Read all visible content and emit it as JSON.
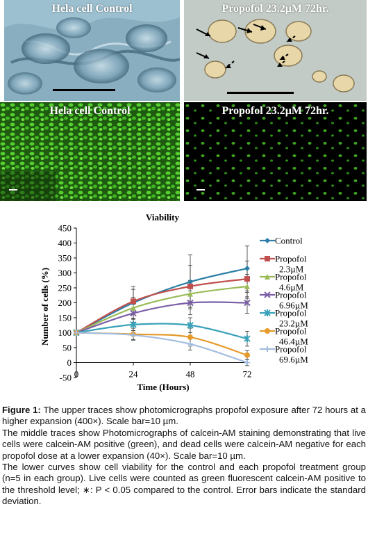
{
  "panels": [
    {
      "label": "Hela cell   Control"
    },
    {
      "label": "Propofol 23.2µM 72hr."
    },
    {
      "label": "Hela cell   Control"
    },
    {
      "label": "Propofol 23.2µM 72hr."
    }
  ],
  "colors": {
    "control": "#2e7fa8",
    "p2_3": "#c0504d",
    "p4_6": "#9bbb59",
    "p6_96": "#7a5ea6",
    "p23_2": "#3aa2b8",
    "p46_4": "#e59b2c",
    "p69_6": "#a3bde0"
  },
  "chart_data": {
    "type": "line",
    "title": "Viability",
    "xlabel": "Time (Hours)",
    "ylabel": "Number of cells (%)",
    "x": [
      0,
      24,
      48,
      72
    ],
    "xticks": [
      "0",
      "24",
      "48",
      "72"
    ],
    "ylim": [
      -50,
      450
    ],
    "yticks": [
      "450",
      "400",
      "350",
      "300",
      "250",
      "200",
      "150",
      "100",
      "50",
      "0",
      "-50"
    ],
    "grid": false,
    "legend": "right",
    "series": [
      {
        "name": "Control",
        "values": [
          100,
          200,
          270,
          315
        ],
        "err": [
          0,
          55,
          90,
          75
        ]
      },
      {
        "name": "Propofol 2.3µM",
        "values": [
          100,
          205,
          255,
          280
        ],
        "err": [
          0,
          40,
          70,
          60
        ]
      },
      {
        "name": "Propofol 4.6µM",
        "values": [
          100,
          183,
          230,
          255
        ],
        "err": [
          0,
          35,
          45,
          40
        ]
      },
      {
        "name": "Propofol 6.96µM",
        "values": [
          100,
          165,
          200,
          200
        ],
        "err": [
          0,
          30,
          40,
          35
        ]
      },
      {
        "name": "Propofol 23.2µM",
        "values": [
          100,
          127,
          125,
          80
        ],
        "err": [
          0,
          20,
          25,
          25
        ]
      },
      {
        "name": "Propofol 46.4µM",
        "values": [
          100,
          95,
          85,
          25
        ],
        "err": [
          0,
          20,
          30,
          15
        ]
      },
      {
        "name": "Propofol 69.6µM",
        "values": [
          100,
          92,
          62,
          0
        ],
        "err": [
          0,
          15,
          20,
          10
        ]
      }
    ]
  },
  "caption": {
    "figure_label": "Figure 1:",
    "p1": " The upper traces show photomicrographs propofol exposure after 72 hours at a higher expansion (400×). Scale bar=10 µm.",
    "p2": "The middle traces show Photomicrographs of calcein-AM staining demonstrating that live cells were calcein-AM positive (green), and dead cells were calcein-AM negative for each propofol dose at a lower expansion (40×). Scale bar=10 µm.",
    "p3": "The lower curves show cell viability for the control and each propofol treatment group (n=5 in each group). Live cells were counted as green fluorescent calcein-AM positive to the threshold level; ∗: P < 0.05 compared to the control. Error bars indicate the standard deviation."
  }
}
